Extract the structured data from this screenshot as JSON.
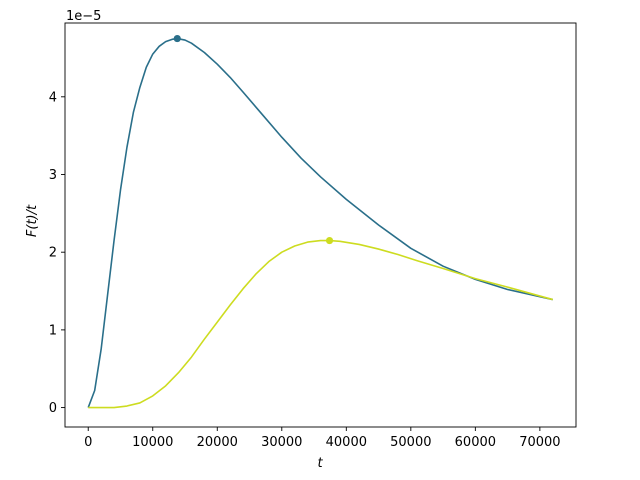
{
  "chart_data": {
    "type": "line",
    "title": "",
    "xlabel": "t",
    "ylabel": "F(t)/t",
    "y_offset_label": "1e−5",
    "xlim": [
      -3600,
      75600
    ],
    "ylim": [
      -0.25,
      4.95
    ],
    "y_scale_note": "values in units of 1e-5",
    "x_ticks": [
      0,
      10000,
      20000,
      30000,
      40000,
      50000,
      60000,
      70000
    ],
    "x_tick_labels": [
      "0",
      "10000",
      "20000",
      "30000",
      "40000",
      "50000",
      "60000",
      "70000"
    ],
    "y_ticks": [
      0,
      1,
      2,
      3,
      4
    ],
    "y_tick_labels": [
      "0",
      "1",
      "2",
      "3",
      "4"
    ],
    "grid": false,
    "series": [
      {
        "color": "#2a6f8a",
        "x": [
          0,
          1000,
          2000,
          3000,
          4000,
          5000,
          6000,
          7000,
          8000,
          9000,
          10000,
          11000,
          12000,
          13000,
          13800,
          15000,
          16000,
          18000,
          20000,
          22000,
          24000,
          27000,
          30000,
          33000,
          36000,
          40000,
          45000,
          50000,
          55000,
          60000,
          65000,
          72000
        ],
        "y": [
          0,
          0.22,
          0.75,
          1.45,
          2.15,
          2.8,
          3.35,
          3.8,
          4.12,
          4.38,
          4.55,
          4.65,
          4.71,
          4.74,
          4.75,
          4.73,
          4.69,
          4.57,
          4.42,
          4.25,
          4.06,
          3.77,
          3.48,
          3.21,
          2.97,
          2.68,
          2.35,
          2.05,
          1.82,
          1.65,
          1.52,
          1.39
        ],
        "marker": {
          "x": 13800,
          "y": 4.75
        }
      },
      {
        "color": "#cddc20",
        "x": [
          0,
          2000,
          4000,
          6000,
          8000,
          10000,
          12000,
          14000,
          16000,
          18000,
          20000,
          22000,
          24000,
          26000,
          28000,
          30000,
          32000,
          34000,
          36000,
          37400,
          39000,
          42000,
          45000,
          48000,
          51000,
          55000,
          60000,
          65000,
          72000
        ],
        "y": [
          0,
          0.0,
          0.0,
          0.02,
          0.06,
          0.15,
          0.28,
          0.45,
          0.65,
          0.88,
          1.1,
          1.32,
          1.53,
          1.72,
          1.88,
          2.0,
          2.08,
          2.13,
          2.15,
          2.15,
          2.14,
          2.1,
          2.04,
          1.97,
          1.89,
          1.79,
          1.66,
          1.55,
          1.39
        ],
        "marker": {
          "x": 37400,
          "y": 2.15
        }
      }
    ]
  }
}
